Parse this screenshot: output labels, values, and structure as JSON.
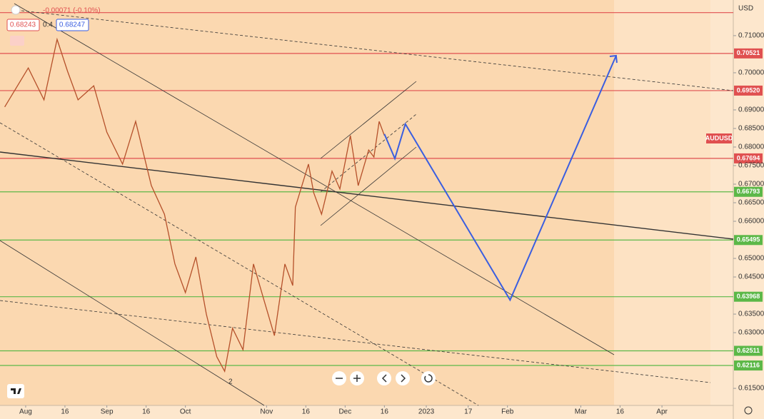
{
  "chart_data": {
    "type": "line",
    "symbol": "AUDUSD",
    "currency": "USD",
    "change": "-0.00071 (-0.10%)",
    "bid": "0.68243",
    "spread": "0.4",
    "ask": "0.68247",
    "wave_label": "2",
    "xlim": [
      -9.8,
      269.7
    ],
    "xticks": [
      {
        "value": 0,
        "label": "Aug"
      },
      {
        "value": 15,
        "label": "16"
      },
      {
        "value": 31,
        "label": "Sep"
      },
      {
        "value": 46,
        "label": "16"
      },
      {
        "value": 61,
        "label": "Oct"
      },
      {
        "value": 92,
        "label": "Nov"
      },
      {
        "value": 107,
        "label": "16"
      },
      {
        "value": 122,
        "label": "Dec"
      },
      {
        "value": 137,
        "label": "16"
      },
      {
        "value": 153,
        "label": "2023"
      },
      {
        "value": 169,
        "label": "17"
      },
      {
        "value": 184,
        "label": "Feb"
      },
      {
        "value": 212,
        "label": "Mar"
      },
      {
        "value": 227,
        "label": "16"
      },
      {
        "value": 243,
        "label": "Apr"
      }
    ],
    "ylim": [
      0.6104,
      0.7196
    ],
    "yticks": [
      {
        "value": 0.71,
        "label": "0.71000"
      },
      {
        "value": 0.7,
        "label": "0.70000"
      },
      {
        "value": 0.69,
        "label": "0.69000"
      },
      {
        "value": 0.685,
        "label": "0.68500"
      },
      {
        "value": 0.68,
        "label": "0.68000"
      },
      {
        "value": 0.675,
        "label": "0.67500"
      },
      {
        "value": 0.67,
        "label": "0.67000"
      },
      {
        "value": 0.665,
        "label": "0.66500"
      },
      {
        "value": 0.66,
        "label": "0.66000"
      },
      {
        "value": 0.65,
        "label": "0.65000"
      },
      {
        "value": 0.645,
        "label": "0.64500"
      },
      {
        "value": 0.635,
        "label": "0.63500"
      },
      {
        "value": 0.63,
        "label": "0.63000"
      },
      {
        "value": 0.615,
        "label": "0.61500"
      }
    ],
    "levels": [
      {
        "value": 0.7162,
        "color": "#e05050"
      },
      {
        "value": 0.70521,
        "label": "0.70521",
        "color": "#e05050"
      },
      {
        "value": 0.6952,
        "label": "0.69520",
        "color": "#e05050"
      },
      {
        "value": 0.67694,
        "label": "0.67694",
        "color": "#e05050"
      },
      {
        "value": 0.66793,
        "label": "0.66793",
        "color": "#5cb848"
      },
      {
        "value": 0.65495,
        "label": "0.65495",
        "color": "#5cb848"
      },
      {
        "value": 0.63968,
        "label": "0.63968",
        "color": "#5cb848"
      },
      {
        "value": 0.62511,
        "label": "0.62511",
        "color": "#5cb848"
      },
      {
        "value": 0.62116,
        "label": "0.62116",
        "color": "#5cb848"
      }
    ],
    "price": {
      "color": "#b5502a",
      "x": [
        -8,
        1,
        7,
        12,
        16,
        20,
        26,
        31,
        37,
        42,
        48,
        53,
        57,
        61,
        65,
        69,
        73,
        76,
        79,
        83,
        87,
        91,
        95,
        99,
        102,
        103,
        108,
        110,
        113,
        117,
        120,
        124,
        127,
        131,
        133,
        135,
        137
      ],
      "values": [
        0.6908,
        0.7013,
        0.6927,
        0.709,
        0.7004,
        0.6927,
        0.6965,
        0.684,
        0.6754,
        0.6869,
        0.6696,
        0.6619,
        0.6485,
        0.6408,
        0.6504,
        0.635,
        0.6235,
        0.6196,
        0.6312,
        0.6254,
        0.6485,
        0.6388,
        0.6292,
        0.6485,
        0.6427,
        0.6638,
        0.6754,
        0.6677,
        0.6619,
        0.6735,
        0.6687,
        0.6831,
        0.6696,
        0.6792,
        0.6773,
        0.6869,
        0.6831
      ]
    },
    "projection": {
      "color": "#3a5ee0",
      "x": [
        137,
        141,
        145,
        185,
        225.5
      ],
      "values": [
        0.6835,
        0.6769,
        0.6862,
        0.6388,
        0.7046
      ]
    }
  }
}
